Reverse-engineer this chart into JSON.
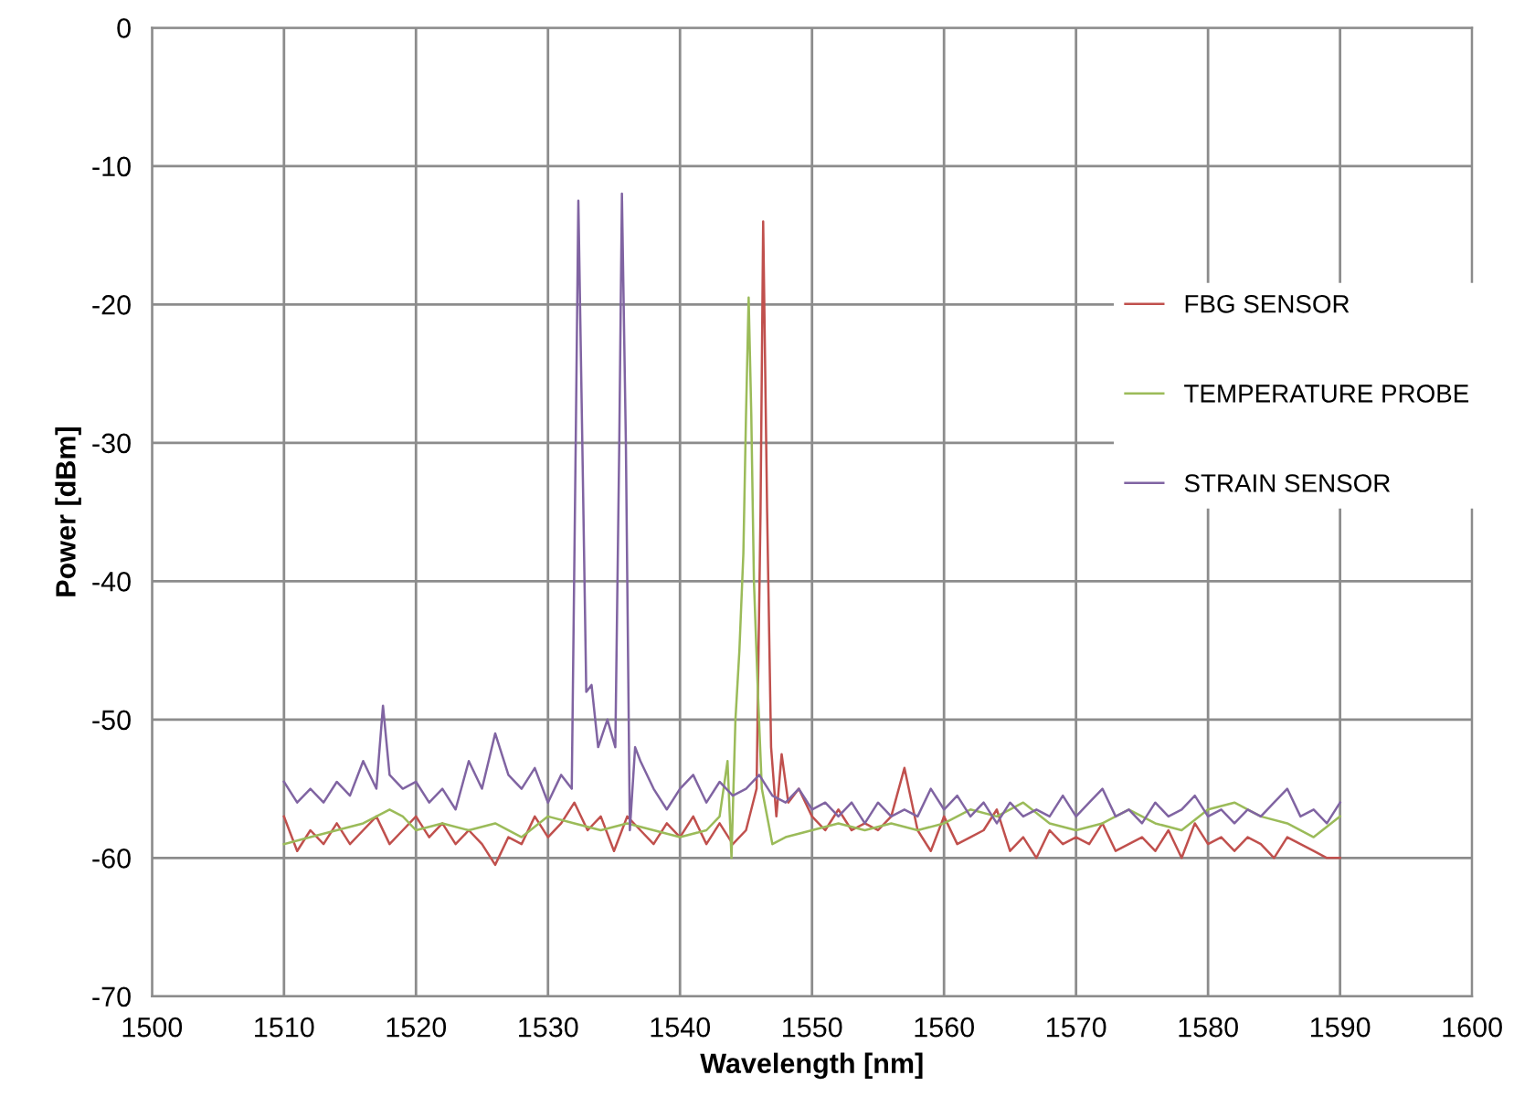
{
  "chart_data": {
    "type": "line",
    "xlabel": "Wavelength [nm]",
    "ylabel": "Power [dBm]",
    "xlim": [
      1500,
      1600
    ],
    "xticks": [
      1500,
      1510,
      1520,
      1530,
      1540,
      1550,
      1560,
      1570,
      1580,
      1590,
      1600
    ],
    "ylim": [
      -70,
      0
    ],
    "yticks": [
      -70,
      -60,
      -50,
      -40,
      -30,
      -20,
      -10,
      0
    ],
    "grid": true,
    "legend": "right",
    "marker": "none",
    "line_style": "solid",
    "series": [
      {
        "name": "FBG SENSOR",
        "color": "#c0504d",
        "x": [
          1510,
          1511,
          1512,
          1513,
          1514,
          1515,
          1516,
          1517,
          1518,
          1519,
          1520,
          1521,
          1522,
          1523,
          1524,
          1525,
          1526,
          1527,
          1528,
          1529,
          1530,
          1531,
          1532,
          1533,
          1534,
          1535,
          1536,
          1537,
          1538,
          1539,
          1540,
          1541,
          1542,
          1543,
          1544,
          1545,
          1545.8,
          1546.1,
          1546.3,
          1546.6,
          1546.9,
          1547.3,
          1547.7,
          1548.2,
          1549,
          1550,
          1551,
          1552,
          1553,
          1554,
          1555,
          1556,
          1557,
          1558,
          1559,
          1560,
          1561,
          1562,
          1563,
          1564,
          1565,
          1566,
          1567,
          1568,
          1569,
          1570,
          1571,
          1572,
          1573,
          1574,
          1575,
          1576,
          1577,
          1578,
          1579,
          1580,
          1581,
          1582,
          1583,
          1584,
          1585,
          1586,
          1587,
          1588,
          1589,
          1590
        ],
        "values": [
          -57,
          -59.5,
          -58,
          -59,
          -57.5,
          -59,
          -58,
          -57,
          -59,
          -58,
          -57,
          -58.5,
          -57.5,
          -59,
          -58,
          -59,
          -60.5,
          -58.5,
          -59,
          -57,
          -58.5,
          -57.5,
          -56,
          -58,
          -57,
          -59.5,
          -57,
          -58,
          -59,
          -57.5,
          -58.5,
          -57,
          -59,
          -57.5,
          -59,
          -58,
          -55,
          -35,
          -14,
          -35,
          -52,
          -57,
          -52.5,
          -56,
          -55,
          -57,
          -58,
          -56.5,
          -58,
          -57.5,
          -58,
          -57,
          -53.5,
          -58,
          -59.5,
          -57,
          -59,
          -58.5,
          -58,
          -56.5,
          -59.5,
          -58.5,
          -60,
          -58,
          -59,
          -58.5,
          -59,
          -57.5,
          -59.5,
          -59,
          -58.5,
          -59.5,
          -58,
          -60,
          -57.5,
          -59,
          -58.5,
          -59.5,
          -58.5,
          -59,
          -60,
          -58.5,
          -59,
          -59.5,
          -60,
          -60
        ]
      },
      {
        "name": "TEMPERATURE PROBE",
        "color": "#9bbb59",
        "x": [
          1510,
          1512,
          1514,
          1516,
          1518,
          1519,
          1520,
          1522,
          1524,
          1526,
          1528,
          1530,
          1532,
          1534,
          1536,
          1538,
          1540,
          1542,
          1543,
          1543.6,
          1543.9,
          1544.2,
          1544.5,
          1544.8,
          1545.0,
          1545.2,
          1545.4,
          1545.6,
          1545.9,
          1546.2,
          1546.6,
          1547,
          1548,
          1550,
          1552,
          1554,
          1556,
          1558,
          1560,
          1562,
          1564,
          1566,
          1568,
          1570,
          1572,
          1574,
          1576,
          1578,
          1580,
          1582,
          1584,
          1586,
          1588,
          1590
        ],
        "values": [
          -59,
          -58.5,
          -58,
          -57.5,
          -56.5,
          -57,
          -58,
          -57.5,
          -58,
          -57.5,
          -58.5,
          -57,
          -57.5,
          -58,
          -57.5,
          -58,
          -58.5,
          -58,
          -57,
          -53,
          -60,
          -50,
          -45,
          -38,
          -28,
          -19.5,
          -28,
          -40,
          -48,
          -55,
          -57,
          -59,
          -58.5,
          -58,
          -57.5,
          -58,
          -57.5,
          -58,
          -57.5,
          -56.5,
          -57,
          -56,
          -57.5,
          -58,
          -57.5,
          -56.5,
          -57.5,
          -58,
          -56.5,
          -56,
          -57,
          -57.5,
          -58.5,
          -57
        ]
      },
      {
        "name": "STRAIN SENSOR",
        "color": "#8064a2",
        "x": [
          1510,
          1511,
          1512,
          1513,
          1514,
          1515,
          1516,
          1517,
          1517.5,
          1518,
          1519,
          1520,
          1521,
          1522,
          1523,
          1524,
          1525,
          1526,
          1527,
          1528,
          1529,
          1530,
          1531,
          1531.8,
          1532.1,
          1532.3,
          1532.6,
          1532.9,
          1533.3,
          1533.8,
          1534.5,
          1535.1,
          1535.4,
          1535.6,
          1535.9,
          1536.2,
          1536.6,
          1537,
          1538,
          1539,
          1540,
          1541,
          1542,
          1543,
          1544,
          1545,
          1546,
          1547,
          1548,
          1549,
          1550,
          1551,
          1552,
          1553,
          1554,
          1555,
          1556,
          1557,
          1558,
          1559,
          1560,
          1561,
          1562,
          1563,
          1564,
          1565,
          1566,
          1567,
          1568,
          1569,
          1570,
          1571,
          1572,
          1573,
          1574,
          1575,
          1576,
          1577,
          1578,
          1579,
          1580,
          1581,
          1582,
          1583,
          1584,
          1585,
          1586,
          1587,
          1588,
          1589,
          1590
        ],
        "values": [
          -54.5,
          -56,
          -55,
          -56,
          -54.5,
          -55.5,
          -53,
          -55,
          -49,
          -54,
          -55,
          -54.5,
          -56,
          -55,
          -56.5,
          -53,
          -55,
          -51,
          -54,
          -55,
          -53.5,
          -56,
          -54,
          -55,
          -30,
          -12.5,
          -30,
          -48,
          -47.5,
          -52,
          -50,
          -52,
          -30,
          -12,
          -30,
          -58,
          -52,
          -53,
          -55,
          -56.5,
          -55,
          -54,
          -56,
          -54.5,
          -55.5,
          -55,
          -54,
          -55.5,
          -56,
          -55,
          -56.5,
          -56,
          -57,
          -56,
          -57.5,
          -56,
          -57,
          -56.5,
          -57,
          -55,
          -56.5,
          -55.5,
          -57,
          -56,
          -57.5,
          -56,
          -57,
          -56.5,
          -57,
          -55.5,
          -57,
          -56,
          -55,
          -57,
          -56.5,
          -57.5,
          -56,
          -57,
          -56.5,
          -55.5,
          -57,
          -56.5,
          -57.5,
          -56.5,
          -57,
          -56,
          -55,
          -57,
          -56.5,
          -57.5,
          -56
        ]
      }
    ]
  }
}
